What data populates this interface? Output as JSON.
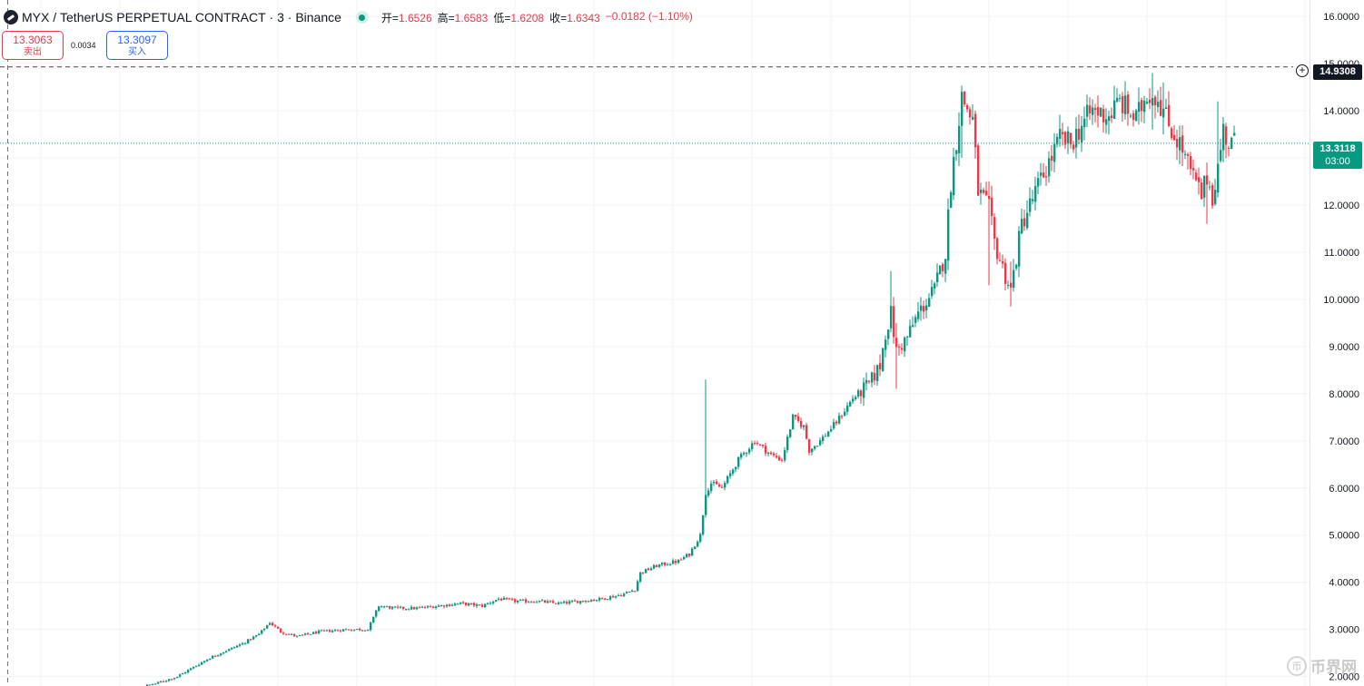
{
  "header": {
    "symbol": "MYX",
    "separator": "/",
    "description": "TetherUS PERPETUAL CONTRACT",
    "interval_exchange": "· 3 · Binance",
    "ohlc": [
      {
        "label": "开=",
        "value": "1.6526"
      },
      {
        "label": "高=",
        "value": "1.6583"
      },
      {
        "label": "低=",
        "value": "1.6208"
      },
      {
        "label": "收=",
        "value": "1.6343"
      },
      {
        "label": "",
        "value": "−0.0182 (−1.10%)"
      }
    ]
  },
  "trade": {
    "sell_price": "13.3063",
    "sell_label": "卖出",
    "spread": "0.0034",
    "buy_price": "13.3097",
    "buy_label": "买入"
  },
  "price_scale": {
    "crosshair_price": "14.9308",
    "current_price": "13.3118",
    "countdown": "03:00"
  },
  "watermark": {
    "icon": "币",
    "text": "币界网"
  },
  "colors": {
    "up": "#089981",
    "down": "#f23645",
    "grid": "#f0f3fa",
    "text": "#131722",
    "crosshair": "#131722"
  },
  "icons": {
    "logo": "myx-logo-icon",
    "status": "market-open-dot-icon",
    "add": "plus-circle-icon",
    "watermark": "coin-icon"
  },
  "chart_data": {
    "type": "candlestick",
    "ylim": [
      1.8,
      16.35
    ],
    "y_ticks": [
      "2.0000",
      "3.0000",
      "4.0000",
      "5.0000",
      "6.0000",
      "7.0000",
      "8.0000",
      "9.0000",
      "10.0000",
      "11.0000",
      "12.0000",
      "13.0000",
      "14.0000",
      "15.0000",
      "16.0000"
    ],
    "crosshair_value": 14.9308,
    "current_value": 13.3118,
    "close_path": [
      [
        0,
        1.6
      ],
      [
        20,
        1.85
      ],
      [
        28,
        2.0
      ],
      [
        34,
        2.2
      ],
      [
        40,
        2.4
      ],
      [
        46,
        2.55
      ],
      [
        52,
        2.7
      ],
      [
        58,
        2.9
      ],
      [
        62,
        3.15
      ],
      [
        66,
        2.95
      ],
      [
        72,
        2.85
      ],
      [
        80,
        2.95
      ],
      [
        90,
        3.0
      ],
      [
        98,
        3.0
      ],
      [
        102,
        3.5
      ],
      [
        108,
        3.45
      ],
      [
        116,
        3.45
      ],
      [
        124,
        3.5
      ],
      [
        132,
        3.55
      ],
      [
        140,
        3.5
      ],
      [
        146,
        3.65
      ],
      [
        152,
        3.6
      ],
      [
        160,
        3.6
      ],
      [
        168,
        3.55
      ],
      [
        176,
        3.6
      ],
      [
        184,
        3.65
      ],
      [
        192,
        3.75
      ],
      [
        196,
        3.85
      ],
      [
        198,
        4.2
      ],
      [
        204,
        4.35
      ],
      [
        212,
        4.45
      ],
      [
        216,
        4.6
      ],
      [
        220,
        5.0
      ],
      [
        222,
        5.9
      ],
      [
        224,
        6.1
      ],
      [
        228,
        6.0
      ],
      [
        234,
        6.6
      ],
      [
        240,
        7.0
      ],
      [
        246,
        6.7
      ],
      [
        250,
        6.6
      ],
      [
        254,
        7.5
      ],
      [
        258,
        7.3
      ],
      [
        260,
        6.8
      ],
      [
        264,
        7.0
      ],
      [
        270,
        7.4
      ],
      [
        276,
        7.9
      ],
      [
        282,
        8.2
      ],
      [
        286,
        8.6
      ],
      [
        288,
        9.3
      ],
      [
        290,
        9.7
      ],
      [
        292,
        8.9
      ],
      [
        296,
        9.2
      ],
      [
        300,
        9.7
      ],
      [
        306,
        10.2
      ],
      [
        310,
        11.0
      ],
      [
        312,
        12.5
      ],
      [
        314,
        13.4
      ],
      [
        316,
        14.3
      ],
      [
        320,
        13.8
      ],
      [
        322,
        12.3
      ],
      [
        326,
        11.9
      ],
      [
        328,
        11.2
      ],
      [
        332,
        10.5
      ],
      [
        334,
        10.2
      ],
      [
        338,
        11.6
      ],
      [
        344,
        12.4
      ],
      [
        348,
        12.9
      ],
      [
        352,
        13.4
      ],
      [
        356,
        13.3
      ],
      [
        360,
        13.7
      ],
      [
        364,
        14.0
      ],
      [
        370,
        13.9
      ],
      [
        374,
        14.2
      ],
      [
        380,
        13.8
      ],
      [
        384,
        14.4
      ],
      [
        388,
        14.3
      ],
      [
        392,
        13.7
      ],
      [
        396,
        13.3
      ],
      [
        400,
        12.7
      ],
      [
        404,
        12.2
      ],
      [
        406,
        12.6
      ],
      [
        408,
        12.2
      ],
      [
        410,
        12.8
      ],
      [
        412,
        13.6
      ],
      [
        414,
        13.3
      ],
      [
        416,
        13.31
      ]
    ],
    "spikes": [
      {
        "x": 222,
        "high": 8.3,
        "low": 5.8
      },
      {
        "x": 290,
        "high": 10.6,
        "low": 9.3
      },
      {
        "x": 292,
        "high": 9.5,
        "low": 8.1
      },
      {
        "x": 316,
        "high": 14.5,
        "low": 13.0
      },
      {
        "x": 326,
        "high": 12.5,
        "low": 10.3
      },
      {
        "x": 334,
        "high": 10.8,
        "low": 9.85
      },
      {
        "x": 386,
        "high": 14.8,
        "low": 13.6
      },
      {
        "x": 390,
        "high": 14.6,
        "low": 13.5
      },
      {
        "x": 406,
        "high": 12.9,
        "low": 11.6
      },
      {
        "x": 410,
        "high": 14.2,
        "low": 12.4
      }
    ]
  }
}
